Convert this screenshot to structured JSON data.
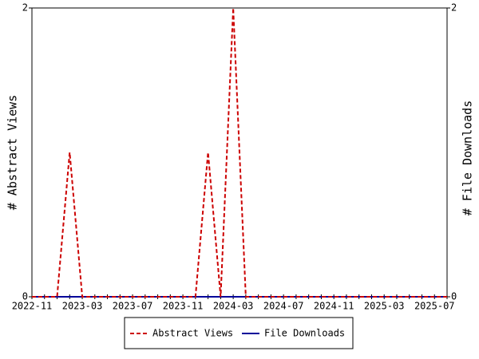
{
  "chart_data": {
    "type": "line",
    "x": [
      "2022-11",
      "2022-12",
      "2023-01",
      "2023-02",
      "2023-03",
      "2023-04",
      "2023-05",
      "2023-06",
      "2023-07",
      "2023-08",
      "2023-09",
      "2023-10",
      "2023-11",
      "2023-12",
      "2024-01",
      "2024-02",
      "2024-03",
      "2024-04",
      "2024-05",
      "2024-06",
      "2024-07",
      "2024-08",
      "2024-09",
      "2024-10",
      "2024-11",
      "2024-12",
      "2025-01",
      "2025-02",
      "2025-03",
      "2025-04",
      "2025-05",
      "2025-06",
      "2025-07",
      "2025-08"
    ],
    "xticks": [
      "2022-11",
      "2023-03",
      "2023-07",
      "2023-11",
      "2024-03",
      "2024-07",
      "2024-11",
      "2025-03",
      "2025-07"
    ],
    "ylabel": "# Abstract Views",
    "y2label": "# File Downloads",
    "ylim": [
      0,
      2
    ],
    "yticks": [
      0,
      2
    ],
    "y2lim": [
      0,
      2
    ],
    "y2ticks": [
      0,
      2
    ],
    "series": [
      {
        "name": "Abstract Views",
        "color": "#cc0000",
        "dashed": true,
        "values": [
          0,
          0,
          0,
          1,
          0,
          0,
          0,
          0,
          0,
          0,
          0,
          0,
          0,
          0,
          1,
          0,
          2,
          0,
          0,
          0,
          0,
          0,
          0,
          0,
          0,
          0,
          0,
          0,
          0,
          0,
          0,
          0,
          0,
          0
        ]
      },
      {
        "name": "File Downloads",
        "color": "#000099",
        "axis": "y2",
        "values": [
          0,
          0,
          0,
          0,
          0,
          0,
          0,
          0,
          0,
          0,
          0,
          0,
          0,
          0,
          0,
          0,
          0,
          0,
          0,
          0,
          0,
          0,
          0,
          0,
          0,
          0,
          0,
          0,
          0,
          0,
          0,
          0,
          0,
          0
        ]
      }
    ]
  }
}
